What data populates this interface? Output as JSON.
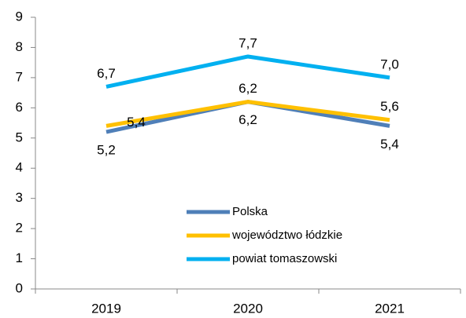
{
  "chart_data": {
    "type": "line",
    "categories": [
      "2019",
      "2020",
      "2021"
    ],
    "series": [
      {
        "name": "Polska",
        "color": "#4f7fb8",
        "values": [
          5.2,
          6.2,
          5.4
        ],
        "value_labels": [
          "5,2",
          "6,2",
          "5,4"
        ]
      },
      {
        "name": "województwo łódzkie",
        "color": "#ffc000",
        "values": [
          5.4,
          6.2,
          5.6
        ],
        "value_labels": [
          "5,4",
          "6,2",
          "5,6"
        ]
      },
      {
        "name": "powiat tomaszowski",
        "color": "#00b0f0",
        "values": [
          6.7,
          7.7,
          7.0
        ],
        "value_labels": [
          "6,7",
          "7,7",
          "7,0"
        ]
      }
    ],
    "ylim": [
      0,
      9
    ],
    "yticks": [
      0,
      1,
      2,
      3,
      4,
      5,
      6,
      7,
      8,
      9
    ],
    "grid": false
  }
}
